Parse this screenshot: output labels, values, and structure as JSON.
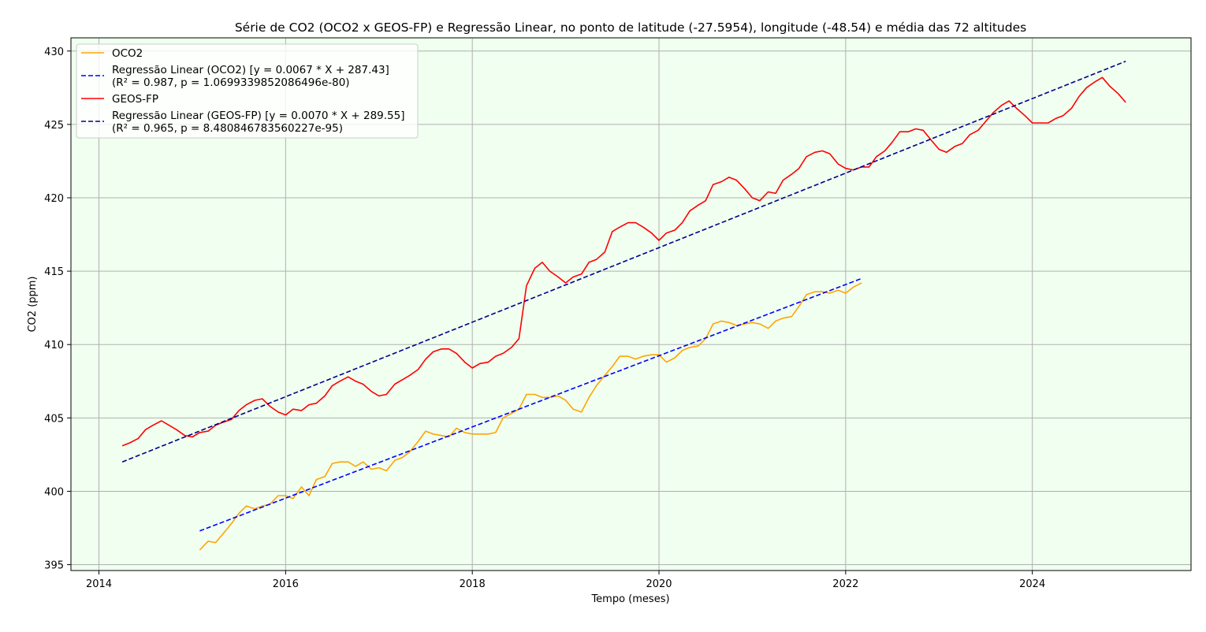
{
  "chart_data": {
    "type": "line",
    "title": "Série de CO2 (OCO2 x GEOS-FP) e Regressão Linear, no ponto de latitude (-27.5954), longitude (-48.54) e média das 72 altitudes",
    "xlabel": "Tempo (meses)",
    "ylabel": "CO2 (ppm)",
    "xlim": [
      2013.7,
      2025.7
    ],
    "ylim": [
      394.6,
      430.9
    ],
    "x_ticks": [
      2014,
      2016,
      2018,
      2020,
      2022,
      2024
    ],
    "x_tick_labels": [
      "2014",
      "2016",
      "2018",
      "2020",
      "2022",
      "2024"
    ],
    "y_ticks": [
      395,
      400,
      405,
      410,
      415,
      420,
      425,
      430
    ],
    "y_tick_labels": [
      "395",
      "400",
      "405",
      "410",
      "415",
      "420",
      "425",
      "430"
    ],
    "grid": true,
    "legend_position": "top-left",
    "background_color": "#f0fff0",
    "series": [
      {
        "name": "OCO2",
        "color": "#ffa500",
        "style": "solid",
        "x": [
          2015.08,
          2015.17,
          2015.25,
          2015.33,
          2015.42,
          2015.5,
          2015.58,
          2015.67,
          2015.75,
          2015.83,
          2015.92,
          2016.0,
          2016.08,
          2016.17,
          2016.25,
          2016.33,
          2016.42,
          2016.5,
          2016.58,
          2016.67,
          2016.75,
          2016.83,
          2016.92,
          2017.0,
          2017.08,
          2017.17,
          2017.25,
          2017.33,
          2017.42,
          2017.5,
          2017.58,
          2017.67,
          2017.75,
          2017.83,
          2017.92,
          2018.0,
          2018.08,
          2018.17,
          2018.25,
          2018.33,
          2018.42,
          2018.5,
          2018.58,
          2018.67,
          2018.75,
          2018.83,
          2018.92,
          2019.0,
          2019.08,
          2019.17,
          2019.25,
          2019.33,
          2019.42,
          2019.5,
          2019.58,
          2019.67,
          2019.75,
          2019.83,
          2019.92,
          2020.0,
          2020.08,
          2020.17,
          2020.25,
          2020.33,
          2020.42,
          2020.5,
          2020.58,
          2020.67,
          2020.75,
          2020.83,
          2020.92,
          2021.0,
          2021.08,
          2021.17,
          2021.25,
          2021.33,
          2021.42,
          2021.5,
          2021.58,
          2021.67,
          2021.75,
          2021.83,
          2021.92,
          2022.0,
          2022.08,
          2022.17
        ],
        "y": [
          396.0,
          396.6,
          396.5,
          397.1,
          397.8,
          398.5,
          399.0,
          398.8,
          399.0,
          399.1,
          399.7,
          399.7,
          399.5,
          400.3,
          399.7,
          400.8,
          401.0,
          401.9,
          402.0,
          402.0,
          401.7,
          402.0,
          401.5,
          401.6,
          401.4,
          402.1,
          402.3,
          402.7,
          403.4,
          404.1,
          403.9,
          403.8,
          403.7,
          404.3,
          404.0,
          403.9,
          403.9,
          403.9,
          404.0,
          405.0,
          405.3,
          405.6,
          406.6,
          406.6,
          406.4,
          406.4,
          406.5,
          406.2,
          405.6,
          405.4,
          406.4,
          407.2,
          407.9,
          408.5,
          409.2,
          409.2,
          409.0,
          409.2,
          409.3,
          409.3,
          408.8,
          409.1,
          409.6,
          409.8,
          409.9,
          410.4,
          411.4,
          411.6,
          411.5,
          411.3,
          411.4,
          411.5,
          411.4,
          411.1,
          411.6,
          411.8,
          411.9,
          412.6,
          413.4,
          413.6,
          413.6,
          413.5,
          413.7,
          413.5,
          413.9,
          414.2
        ]
      },
      {
        "name": "Regressão Linear (OCO2) [y = 0.0067 * X + 287.43]",
        "name_line2": "(R² = 0.987, p = 1.0699339852086496e-80)",
        "color": "#0000ff",
        "style": "dashed",
        "x": [
          2015.08,
          2022.17
        ],
        "y": [
          397.3,
          414.5
        ]
      },
      {
        "name": "GEOS-FP",
        "color": "#ff0000",
        "style": "solid",
        "x": [
          2014.25,
          2014.33,
          2014.42,
          2014.5,
          2014.58,
          2014.67,
          2014.75,
          2014.83,
          2014.92,
          2015.0,
          2015.08,
          2015.17,
          2015.25,
          2015.33,
          2015.42,
          2015.5,
          2015.58,
          2015.67,
          2015.75,
          2015.83,
          2015.92,
          2016.0,
          2016.08,
          2016.17,
          2016.25,
          2016.33,
          2016.42,
          2016.5,
          2016.58,
          2016.67,
          2016.75,
          2016.83,
          2016.92,
          2017.0,
          2017.08,
          2017.17,
          2017.25,
          2017.33,
          2017.42,
          2017.5,
          2017.58,
          2017.67,
          2017.75,
          2017.83,
          2017.92,
          2018.0,
          2018.08,
          2018.17,
          2018.25,
          2018.33,
          2018.42,
          2018.5,
          2018.58,
          2018.67,
          2018.75,
          2018.83,
          2018.92,
          2019.0,
          2019.08,
          2019.17,
          2019.25,
          2019.33,
          2019.42,
          2019.5,
          2019.58,
          2019.67,
          2019.75,
          2019.83,
          2019.92,
          2020.0,
          2020.08,
          2020.17,
          2020.25,
          2020.33,
          2020.42,
          2020.5,
          2020.58,
          2020.67,
          2020.75,
          2020.83,
          2020.92,
          2021.0,
          2021.08,
          2021.17,
          2021.25,
          2021.33,
          2021.42,
          2021.5,
          2021.58,
          2021.67,
          2021.75,
          2021.83,
          2021.92,
          2022.0,
          2022.08,
          2022.17,
          2022.25,
          2022.33,
          2022.42,
          2022.5,
          2022.58,
          2022.67,
          2022.75,
          2022.83,
          2022.92,
          2023.0,
          2023.08,
          2023.17,
          2023.25,
          2023.33,
          2023.42,
          2023.5,
          2023.58,
          2023.67,
          2023.75,
          2023.83,
          2023.92,
          2024.0,
          2024.08,
          2024.17,
          2024.25,
          2024.33,
          2024.42,
          2024.5,
          2024.58,
          2024.67,
          2024.75,
          2024.83,
          2024.92,
          2025.0
        ],
        "y": [
          403.1,
          403.3,
          403.6,
          404.2,
          404.5,
          404.8,
          404.5,
          404.2,
          403.8,
          403.7,
          404.0,
          404.1,
          404.5,
          404.7,
          404.9,
          405.5,
          405.9,
          406.2,
          406.3,
          405.8,
          405.4,
          405.2,
          405.6,
          405.5,
          405.9,
          406.0,
          406.5,
          407.2,
          407.5,
          407.8,
          407.5,
          407.3,
          406.8,
          406.5,
          406.6,
          407.3,
          407.6,
          407.9,
          408.3,
          409.0,
          409.5,
          409.7,
          409.7,
          409.4,
          408.8,
          408.4,
          408.7,
          408.8,
          409.2,
          409.4,
          409.8,
          410.4,
          414.0,
          415.2,
          415.6,
          415.0,
          414.6,
          414.2,
          414.6,
          414.8,
          415.6,
          415.8,
          416.3,
          417.7,
          418.0,
          418.3,
          418.3,
          418.0,
          417.6,
          417.1,
          417.6,
          417.8,
          418.3,
          419.1,
          419.5,
          419.8,
          420.9,
          421.1,
          421.4,
          421.2,
          420.6,
          420.0,
          419.8,
          420.4,
          420.3,
          421.2,
          421.6,
          422.0,
          422.8,
          423.1,
          423.2,
          423.0,
          422.3,
          422.0,
          421.9,
          422.1,
          422.1,
          422.8,
          423.2,
          423.8,
          424.5,
          424.5,
          424.7,
          424.6,
          423.9,
          423.3,
          423.1,
          423.5,
          423.7,
          424.3,
          424.6,
          425.2,
          425.8,
          426.3,
          426.6,
          426.1,
          425.6,
          425.1,
          425.1,
          425.1,
          425.4,
          425.6,
          426.1,
          426.9,
          427.5,
          427.9,
          428.2,
          427.6,
          427.1,
          426.5
        ]
      },
      {
        "name": "Regressão Linear (GEOS-FP) [y = 0.0070 * X + 289.55]",
        "name_line2": "(R² = 0.965, p = 8.480846783560227e-95)",
        "color": "#00008b",
        "style": "dashed",
        "x": [
          2014.25,
          2025.0
        ],
        "y": [
          402.0,
          429.3
        ]
      }
    ]
  }
}
